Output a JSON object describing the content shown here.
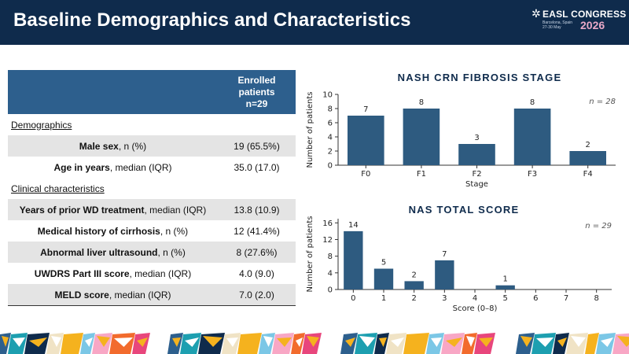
{
  "header": {
    "title": "Baseline Demographics and Characteristics",
    "logo_text": "EASL CONGRESS",
    "logo_sub": "Barcelona, Spain 27-30 May",
    "logo_year": "2026"
  },
  "table": {
    "col_header": "Enrolled patients n=29",
    "col_header_lines": [
      "Enrolled",
      "patients",
      "n=29"
    ],
    "sections": [
      {
        "title": "Demographics",
        "rows": [
          {
            "label_bold": "Male sex",
            "label_rest": ", n (%)",
            "value": "19 (65.5%)"
          },
          {
            "label_bold": "Age in years",
            "label_rest": ", median (IQR)",
            "value": "35.0 (17.0)"
          }
        ]
      },
      {
        "title": "Clinical characteristics",
        "rows": [
          {
            "label_bold": "Years of prior WD treatment",
            "label_rest": ", median (IQR)",
            "value": "13.8 (10.9)"
          },
          {
            "label_bold": "Medical history of cirrhosis",
            "label_rest": ", n (%)",
            "value": "12 (41.4%)"
          },
          {
            "label_bold": "Abnormal liver ultrasound",
            "label_rest": ", n (%)",
            "value": "8 (27.6%)"
          },
          {
            "label_bold": "UWDRS Part III score",
            "label_rest": ", median (IQR)",
            "value": "4.0 (9.0)"
          },
          {
            "label_bold": "MELD score",
            "label_rest": ", median (IQR)",
            "value": "7.0 (2.0)"
          }
        ]
      }
    ]
  },
  "chart_data": [
    {
      "type": "bar",
      "title": "NASH CRN FIBROSIS STAGE",
      "annotation": "n = 28",
      "xlabel": "Stage",
      "ylabel": "Number of patients",
      "categories": [
        "F0",
        "F1",
        "F2",
        "F3",
        "F4"
      ],
      "values": [
        7,
        8,
        3,
        8,
        2
      ],
      "ylim": [
        0,
        10
      ],
      "yticks": [
        0,
        2,
        4,
        6,
        8,
        10
      ],
      "color": "#2e5b80"
    },
    {
      "type": "bar",
      "title": "NAS TOTAL SCORE",
      "annotation": "n = 29",
      "xlabel": "Score (0–8)",
      "ylabel": "Number of patients",
      "categories": [
        "0",
        "1",
        "2",
        "3",
        "4",
        "5",
        "6",
        "7",
        "8"
      ],
      "values": [
        14,
        5,
        2,
        7,
        0,
        1,
        0,
        0,
        0
      ],
      "value_labels": [
        "14",
        "5",
        "2",
        "7",
        "",
        "1",
        "",
        "",
        ""
      ],
      "ylim": [
        0,
        17
      ],
      "yticks": [
        0,
        4,
        8,
        12,
        16
      ],
      "color": "#2e5b80"
    }
  ]
}
